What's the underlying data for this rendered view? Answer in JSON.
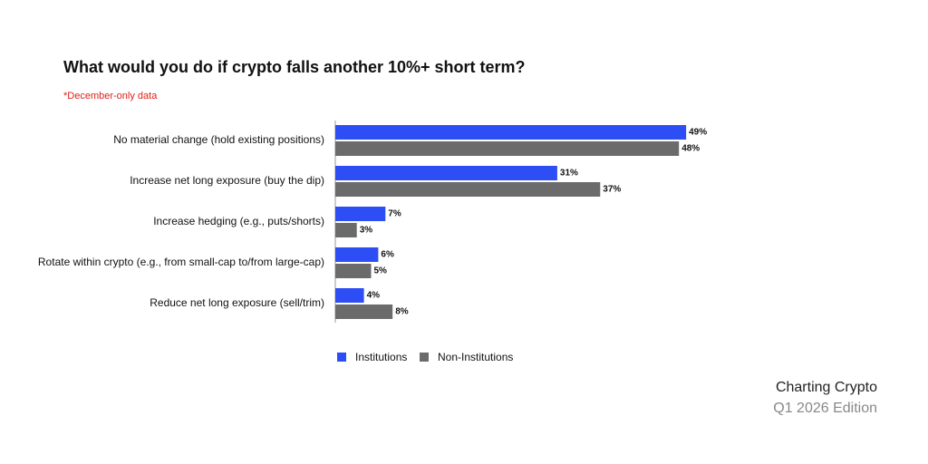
{
  "chart_data": {
    "type": "bar",
    "orientation": "horizontal",
    "title": "What would you do if crypto falls another 10%+ short term?",
    "subtitle": "*December-only data",
    "categories": [
      "No material change (hold existing positions)",
      "Increase net long exposure (buy the dip)",
      "Increase hedging (e.g., puts/shorts)",
      "Rotate within crypto (e.g., from small-cap to/from large-cap)",
      "Reduce net long exposure (sell/trim)"
    ],
    "series": [
      {
        "name": "Institutions",
        "color": "#2d4ef5",
        "values": [
          49,
          31,
          7,
          6,
          4
        ],
        "value_labels": [
          "49%",
          "31%",
          "7%",
          "6%",
          "4%"
        ]
      },
      {
        "name": "Non-Institutions",
        "color": "#6b6b6b",
        "values": [
          48,
          37,
          3,
          5,
          8
        ],
        "value_labels": [
          "48%",
          "37%",
          "3%",
          "5%",
          "8%"
        ]
      }
    ],
    "legend": "bottom"
  },
  "branding": {
    "title": "Charting Crypto",
    "edition": "Q1 2026 Edition"
  }
}
